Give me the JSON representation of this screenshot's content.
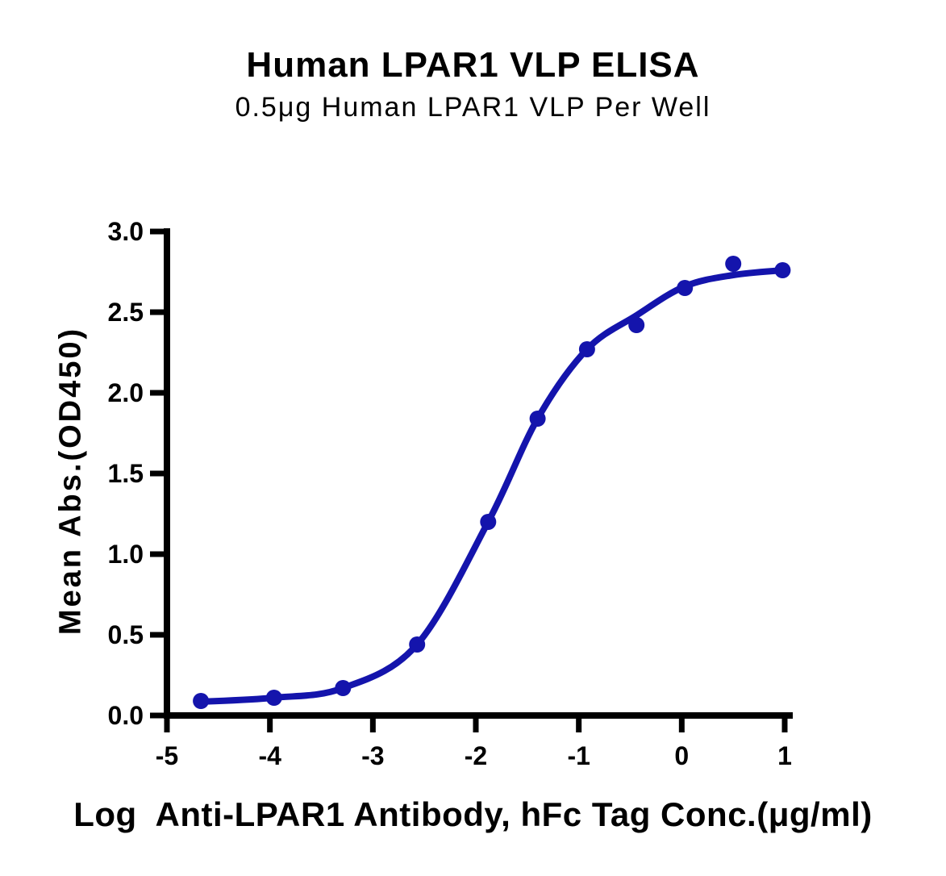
{
  "title": "Human LPAR1 VLP ELISA",
  "subtitle": "0.5μg Human LPAR1 VLP Per Well",
  "colors": {
    "curve": "#1414AC",
    "axis": "#000000",
    "text": "#000000",
    "background": "#FFFFFF"
  },
  "chart_data": {
    "type": "scatter",
    "title": "Human LPAR1 VLP ELISA",
    "subtitle": "0.5μg Human LPAR1 VLP Per Well",
    "xlabel": "Log  Anti-LPAR1 Antibody, hFc Tag Conc.(μg/ml)",
    "ylabel": "Mean Abs.(OD450)",
    "xlim": [
      -5,
      1
    ],
    "ylim": [
      0,
      3
    ],
    "grid": false,
    "legend": "none",
    "x_tick_labels": [
      "-5",
      "-4",
      "-3",
      "-2",
      "-1",
      "0",
      "1"
    ],
    "x_tick_values": [
      -5,
      -4,
      -3,
      -2,
      -1,
      0,
      1
    ],
    "y_tick_labels": [
      "0.0",
      "0.5",
      "1.0",
      "1.5",
      "2.0",
      "2.5",
      "3.0"
    ],
    "y_tick_values": [
      0,
      0.5,
      1,
      1.5,
      2,
      2.5,
      3
    ],
    "series": [
      {
        "name": "Anti-LPAR1 Antibody, hFc Tag",
        "marker": "filled-circle",
        "color": "#1414AC",
        "points": [
          [
            -4.67,
            0.09
          ],
          [
            -3.96,
            0.11
          ],
          [
            -3.29,
            0.17
          ],
          [
            -2.57,
            0.44
          ],
          [
            -1.88,
            1.2
          ],
          [
            -1.4,
            1.84
          ],
          [
            -0.92,
            2.27
          ],
          [
            -0.44,
            2.42
          ],
          [
            0.03,
            2.65
          ],
          [
            0.5,
            2.8
          ],
          [
            0.98,
            2.76
          ]
        ],
        "fit_curve_anchors": [
          [
            -4.67,
            0.085
          ],
          [
            -3.96,
            0.11
          ],
          [
            -3.29,
            0.17
          ],
          [
            -2.57,
            0.44
          ],
          [
            -1.88,
            1.2
          ],
          [
            -1.4,
            1.84
          ],
          [
            -0.92,
            2.27
          ],
          [
            -0.44,
            2.48
          ],
          [
            0.03,
            2.66
          ],
          [
            0.5,
            2.73
          ],
          [
            0.98,
            2.76
          ]
        ]
      }
    ]
  }
}
